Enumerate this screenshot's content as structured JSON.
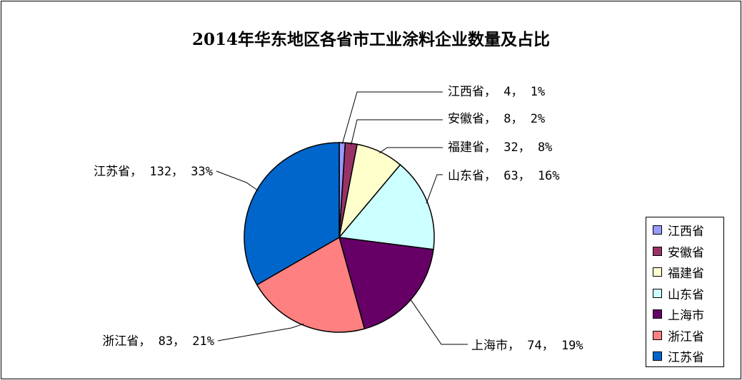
{
  "chart_data": {
    "type": "pie",
    "title": "2014年华东地区各省市工业涂料企业数量及占比",
    "series": [
      {
        "name": "江西省",
        "value": 4,
        "percent": "1%",
        "label": "江西省, 4, 1%",
        "color": "#9999ff"
      },
      {
        "name": "安徽省",
        "value": 8,
        "percent": "2%",
        "label": "安徽省, 8, 2%",
        "color": "#993366"
      },
      {
        "name": "福建省",
        "value": 32,
        "percent": "8%",
        "label": "福建省, 32, 8%",
        "color": "#ffffcc"
      },
      {
        "name": "山东省",
        "value": 63,
        "percent": "16%",
        "label": "山东省, 63, 16%",
        "color": "#ccffff"
      },
      {
        "name": "上海市",
        "value": 74,
        "percent": "19%",
        "label": "上海市, 74, 19%",
        "color": "#660066"
      },
      {
        "name": "浙江省",
        "value": 83,
        "percent": "21%",
        "label": "浙江省, 83, 21%",
        "color": "#ff8080"
      },
      {
        "name": "江苏省",
        "value": 132,
        "percent": "33%",
        "label": "江苏省, 132, 33%",
        "color": "#0066cc"
      }
    ],
    "legend_position": "right-bottom"
  }
}
